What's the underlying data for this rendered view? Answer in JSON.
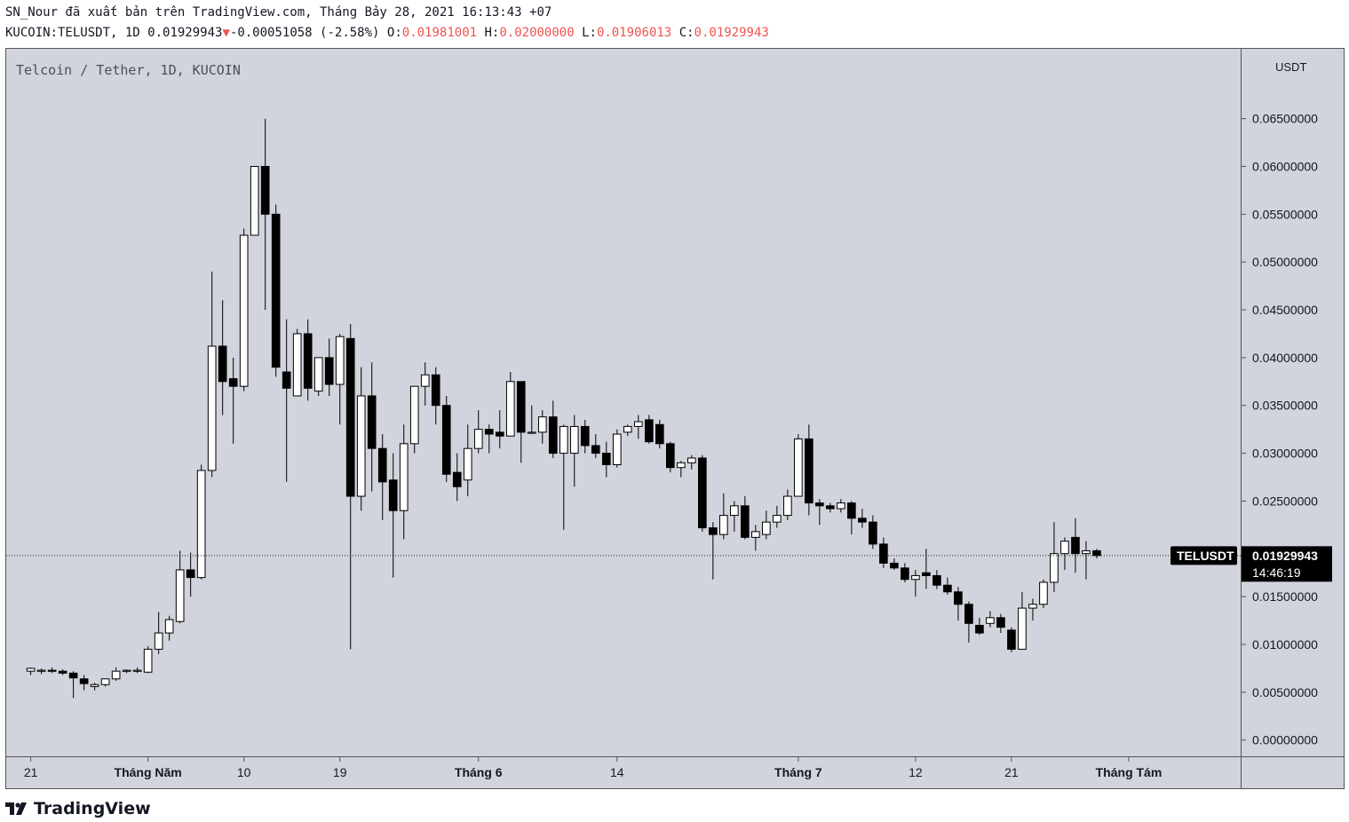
{
  "header": {
    "line1": "SN_Nour đã xuất bản trên TradingView.com, Tháng Bảy 28, 2021 16:13:43 +07",
    "symbol": "KUCOIN:TELUSDT, 1D",
    "last": "0.01929943",
    "change": "-0.00051058 (-2.58%)",
    "o_label": "O:",
    "o": "0.01981001",
    "h_label": "H:",
    "h": "0.02000000",
    "l_label": "L:",
    "l": "0.01906013",
    "c_label": "C:",
    "c": "0.01929943"
  },
  "brand": "TradingView",
  "colors": {
    "background": "#d1d4dc",
    "up_body": "#ffffff",
    "down_body": "#000000",
    "wick": "#000000"
  },
  "chart_data": {
    "type": "candlestick",
    "title": "Telcoin / Tether, 1D, KUCOIN",
    "y_unit": "USDT",
    "ylim": [
      -0.0017,
      0.0723
    ],
    "y_ticks": [
      "0.06500000",
      "0.06000000",
      "0.05500000",
      "0.05000000",
      "0.04500000",
      "0.04000000",
      "0.03500000",
      "0.03000000",
      "0.02500000",
      "0.01500000",
      "0.01000000",
      "0.00500000",
      "0.00000000"
    ],
    "y_tick_values": [
      0.065,
      0.06,
      0.055,
      0.05,
      0.045,
      0.04,
      0.035,
      0.03,
      0.025,
      0.015,
      0.01,
      0.005,
      0.0
    ],
    "x_tick_labels": [
      {
        "label": "21",
        "day": 0
      },
      {
        "label": "Tháng Năm",
        "day": 11
      },
      {
        "label": "10",
        "day": 20
      },
      {
        "label": "19",
        "day": 29
      },
      {
        "label": "Tháng 6",
        "day": 42
      },
      {
        "label": "14",
        "day": 55
      },
      {
        "label": "Tháng 7",
        "day": 72
      },
      {
        "label": "12",
        "day": 83
      },
      {
        "label": "21",
        "day": 92
      },
      {
        "label": "Tháng Tám",
        "day": 103
      }
    ],
    "x_range_days": [
      -2.3,
      113.5
    ],
    "last_price_label": "TELUSDT",
    "last_price": 0.01929943,
    "last_price_text": "0.01929943",
    "countdown": "14:46:19",
    "candles": [
      {
        "o": 0.0072,
        "h": 0.0076,
        "l": 0.0068,
        "c": 0.0075
      },
      {
        "o": 0.0073,
        "h": 0.0075,
        "l": 0.0069,
        "c": 0.0073
      },
      {
        "o": 0.0073,
        "h": 0.0076,
        "l": 0.007,
        "c": 0.0072
      },
      {
        "o": 0.0072,
        "h": 0.0074,
        "l": 0.0068,
        "c": 0.007
      },
      {
        "o": 0.007,
        "h": 0.0072,
        "l": 0.0044,
        "c": 0.0065
      },
      {
        "o": 0.0064,
        "h": 0.0068,
        "l": 0.0052,
        "c": 0.0059
      },
      {
        "o": 0.0056,
        "h": 0.006,
        "l": 0.0052,
        "c": 0.0058
      },
      {
        "o": 0.0058,
        "h": 0.0064,
        "l": 0.0056,
        "c": 0.0064
      },
      {
        "o": 0.0064,
        "h": 0.0076,
        "l": 0.0062,
        "c": 0.0072
      },
      {
        "o": 0.0072,
        "h": 0.0074,
        "l": 0.007,
        "c": 0.0073
      },
      {
        "o": 0.0073,
        "h": 0.0076,
        "l": 0.007,
        "c": 0.0073
      },
      {
        "o": 0.0071,
        "h": 0.0098,
        "l": 0.007,
        "c": 0.0095
      },
      {
        "o": 0.0095,
        "h": 0.0134,
        "l": 0.009,
        "c": 0.0112
      },
      {
        "o": 0.0112,
        "h": 0.013,
        "l": 0.0104,
        "c": 0.0126
      },
      {
        "o": 0.0124,
        "h": 0.0198,
        "l": 0.0122,
        "c": 0.0178
      },
      {
        "o": 0.0178,
        "h": 0.0196,
        "l": 0.015,
        "c": 0.017
      },
      {
        "o": 0.017,
        "h": 0.0288,
        "l": 0.0168,
        "c": 0.0282
      },
      {
        "o": 0.0282,
        "h": 0.049,
        "l": 0.0275,
        "c": 0.0412
      },
      {
        "o": 0.0412,
        "h": 0.046,
        "l": 0.034,
        "c": 0.0375
      },
      {
        "o": 0.0378,
        "h": 0.04,
        "l": 0.031,
        "c": 0.037
      },
      {
        "o": 0.037,
        "h": 0.0535,
        "l": 0.0365,
        "c": 0.0528
      },
      {
        "o": 0.0528,
        "h": 0.06,
        "l": 0.053,
        "c": 0.06
      },
      {
        "o": 0.06,
        "h": 0.065,
        "l": 0.045,
        "c": 0.055
      },
      {
        "o": 0.055,
        "h": 0.056,
        "l": 0.038,
        "c": 0.039
      },
      {
        "o": 0.0385,
        "h": 0.044,
        "l": 0.027,
        "c": 0.0368
      },
      {
        "o": 0.036,
        "h": 0.043,
        "l": 0.036,
        "c": 0.0425
      },
      {
        "o": 0.0425,
        "h": 0.044,
        "l": 0.0355,
        "c": 0.0368
      },
      {
        "o": 0.0365,
        "h": 0.04,
        "l": 0.036,
        "c": 0.04
      },
      {
        "o": 0.04,
        "h": 0.042,
        "l": 0.036,
        "c": 0.0372
      },
      {
        "o": 0.0372,
        "h": 0.0425,
        "l": 0.033,
        "c": 0.0422
      },
      {
        "o": 0.042,
        "h": 0.0435,
        "l": 0.0095,
        "c": 0.0255
      },
      {
        "o": 0.0255,
        "h": 0.039,
        "l": 0.024,
        "c": 0.036
      },
      {
        "o": 0.036,
        "h": 0.0395,
        "l": 0.026,
        "c": 0.0305
      },
      {
        "o": 0.0305,
        "h": 0.032,
        "l": 0.023,
        "c": 0.027
      },
      {
        "o": 0.0272,
        "h": 0.03,
        "l": 0.017,
        "c": 0.024
      },
      {
        "o": 0.024,
        "h": 0.033,
        "l": 0.021,
        "c": 0.031
      },
      {
        "o": 0.031,
        "h": 0.037,
        "l": 0.03,
        "c": 0.037
      },
      {
        "o": 0.037,
        "h": 0.0395,
        "l": 0.035,
        "c": 0.0382
      },
      {
        "o": 0.0382,
        "h": 0.039,
        "l": 0.033,
        "c": 0.035
      },
      {
        "o": 0.035,
        "h": 0.036,
        "l": 0.027,
        "c": 0.0278
      },
      {
        "o": 0.028,
        "h": 0.03,
        "l": 0.025,
        "c": 0.0265
      },
      {
        "o": 0.0272,
        "h": 0.033,
        "l": 0.0255,
        "c": 0.0305
      },
      {
        "o": 0.0305,
        "h": 0.0345,
        "l": 0.03,
        "c": 0.0325
      },
      {
        "o": 0.0325,
        "h": 0.033,
        "l": 0.03,
        "c": 0.032
      },
      {
        "o": 0.0322,
        "h": 0.0345,
        "l": 0.0305,
        "c": 0.0318
      },
      {
        "o": 0.0318,
        "h": 0.0385,
        "l": 0.0318,
        "c": 0.0375
      },
      {
        "o": 0.0375,
        "h": 0.0375,
        "l": 0.029,
        "c": 0.0322
      },
      {
        "o": 0.0322,
        "h": 0.035,
        "l": 0.032,
        "c": 0.0322
      },
      {
        "o": 0.0322,
        "h": 0.0345,
        "l": 0.031,
        "c": 0.0338
      },
      {
        "o": 0.0338,
        "h": 0.0355,
        "l": 0.0295,
        "c": 0.03
      },
      {
        "o": 0.03,
        "h": 0.033,
        "l": 0.022,
        "c": 0.0328
      },
      {
        "o": 0.03,
        "h": 0.034,
        "l": 0.0265,
        "c": 0.0328
      },
      {
        "o": 0.0328,
        "h": 0.0335,
        "l": 0.03,
        "c": 0.0308
      },
      {
        "o": 0.0308,
        "h": 0.032,
        "l": 0.0295,
        "c": 0.03
      },
      {
        "o": 0.03,
        "h": 0.0312,
        "l": 0.0275,
        "c": 0.0288
      },
      {
        "o": 0.0288,
        "h": 0.0325,
        "l": 0.0285,
        "c": 0.032
      },
      {
        "o": 0.0322,
        "h": 0.033,
        "l": 0.0318,
        "c": 0.0328
      },
      {
        "o": 0.0328,
        "h": 0.034,
        "l": 0.0315,
        "c": 0.0333
      },
      {
        "o": 0.0335,
        "h": 0.034,
        "l": 0.031,
        "c": 0.0312
      },
      {
        "o": 0.033,
        "h": 0.0335,
        "l": 0.0305,
        "c": 0.031
      },
      {
        "o": 0.031,
        "h": 0.0312,
        "l": 0.028,
        "c": 0.0285
      },
      {
        "o": 0.0285,
        "h": 0.0292,
        "l": 0.0275,
        "c": 0.029
      },
      {
        "o": 0.029,
        "h": 0.0298,
        "l": 0.0283,
        "c": 0.0295
      },
      {
        "o": 0.0295,
        "h": 0.0298,
        "l": 0.0218,
        "c": 0.0222
      },
      {
        "o": 0.0222,
        "h": 0.0228,
        "l": 0.0168,
        "c": 0.0215
      },
      {
        "o": 0.0215,
        "h": 0.0258,
        "l": 0.021,
        "c": 0.0235
      },
      {
        "o": 0.0235,
        "h": 0.025,
        "l": 0.0218,
        "c": 0.0245
      },
      {
        "o": 0.0245,
        "h": 0.0255,
        "l": 0.021,
        "c": 0.0212
      },
      {
        "o": 0.0212,
        "h": 0.0225,
        "l": 0.0198,
        "c": 0.0218
      },
      {
        "o": 0.0215,
        "h": 0.024,
        "l": 0.021,
        "c": 0.0228
      },
      {
        "o": 0.0228,
        "h": 0.0245,
        "l": 0.0222,
        "c": 0.0235
      },
      {
        "o": 0.0235,
        "h": 0.0262,
        "l": 0.023,
        "c": 0.0255
      },
      {
        "o": 0.0255,
        "h": 0.032,
        "l": 0.0255,
        "c": 0.0315
      },
      {
        "o": 0.0315,
        "h": 0.033,
        "l": 0.0235,
        "c": 0.0248
      },
      {
        "o": 0.0248,
        "h": 0.0252,
        "l": 0.0225,
        "c": 0.0245
      },
      {
        "o": 0.0245,
        "h": 0.0248,
        "l": 0.0238,
        "c": 0.0242
      },
      {
        "o": 0.0242,
        "h": 0.0252,
        "l": 0.0238,
        "c": 0.0248
      },
      {
        "o": 0.0248,
        "h": 0.025,
        "l": 0.0215,
        "c": 0.0232
      },
      {
        "o": 0.0232,
        "h": 0.0242,
        "l": 0.0222,
        "c": 0.0228
      },
      {
        "o": 0.0228,
        "h": 0.0235,
        "l": 0.02,
        "c": 0.0205
      },
      {
        "o": 0.0205,
        "h": 0.0212,
        "l": 0.018,
        "c": 0.0185
      },
      {
        "o": 0.0185,
        "h": 0.019,
        "l": 0.0178,
        "c": 0.018
      },
      {
        "o": 0.018,
        "h": 0.0185,
        "l": 0.0165,
        "c": 0.0168
      },
      {
        "o": 0.0168,
        "h": 0.0178,
        "l": 0.015,
        "c": 0.0172
      },
      {
        "o": 0.0175,
        "h": 0.02,
        "l": 0.0158,
        "c": 0.0172
      },
      {
        "o": 0.0172,
        "h": 0.0178,
        "l": 0.0158,
        "c": 0.0162
      },
      {
        "o": 0.0162,
        "h": 0.017,
        "l": 0.0152,
        "c": 0.0155
      },
      {
        "o": 0.0155,
        "h": 0.016,
        "l": 0.0125,
        "c": 0.0142
      },
      {
        "o": 0.0142,
        "h": 0.0145,
        "l": 0.0102,
        "c": 0.0122
      },
      {
        "o": 0.012,
        "h": 0.0128,
        "l": 0.011,
        "c": 0.0112
      },
      {
        "o": 0.0122,
        "h": 0.0135,
        "l": 0.0118,
        "c": 0.0128
      },
      {
        "o": 0.0128,
        "h": 0.0132,
        "l": 0.0112,
        "c": 0.0118
      },
      {
        "o": 0.0115,
        "h": 0.0118,
        "l": 0.0092,
        "c": 0.0095
      },
      {
        "o": 0.0095,
        "h": 0.0155,
        "l": 0.0095,
        "c": 0.0138
      },
      {
        "o": 0.0138,
        "h": 0.0148,
        "l": 0.0125,
        "c": 0.0142
      },
      {
        "o": 0.0142,
        "h": 0.0168,
        "l": 0.0138,
        "c": 0.0165
      },
      {
        "o": 0.0165,
        "h": 0.0228,
        "l": 0.0155,
        "c": 0.0195
      },
      {
        "o": 0.0195,
        "h": 0.0212,
        "l": 0.0178,
        "c": 0.0208
      },
      {
        "o": 0.0212,
        "h": 0.0232,
        "l": 0.0175,
        "c": 0.0195
      },
      {
        "o": 0.0195,
        "h": 0.0208,
        "l": 0.0168,
        "c": 0.0198
      },
      {
        "o": 0.0198,
        "h": 0.02,
        "l": 0.019,
        "c": 0.0193
      }
    ]
  }
}
